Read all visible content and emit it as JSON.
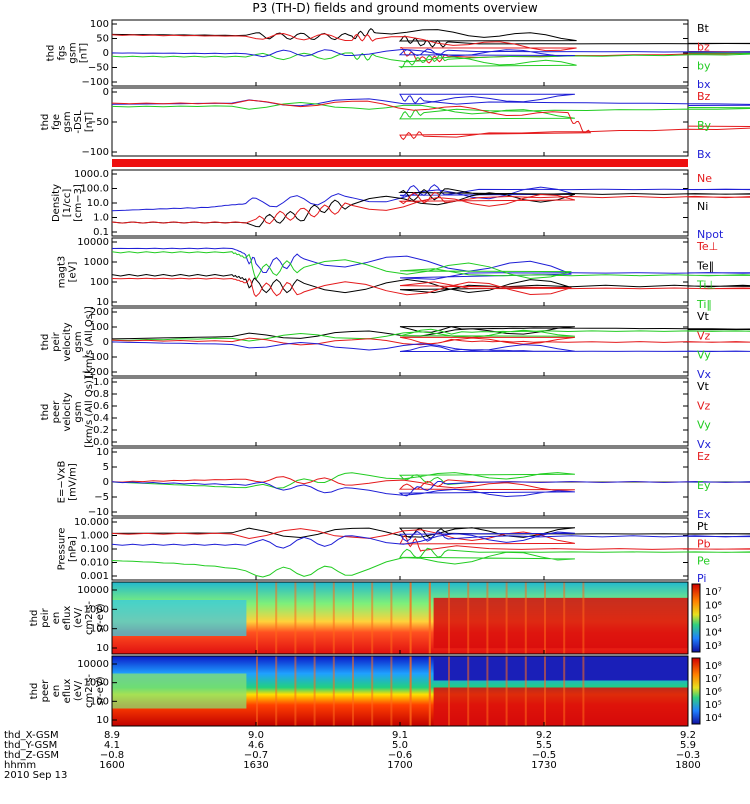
{
  "title": "P3 (TH-D) fields and ground moments overview",
  "colors": {
    "black": "#000000",
    "red": "#e41a1c",
    "green": "#22cc22",
    "blue": "#1f1fd6",
    "spectro_low": "#1d2bd6",
    "spectro_mid": "#22c9d0",
    "spectro_high": "#d91010"
  },
  "chart_data": [
    {
      "id": "fgs",
      "type": "line",
      "ylabel": [
        "thd",
        "fgs",
        "gsm",
        "[nT]"
      ],
      "ytick_labels": [
        "100",
        "50",
        "0",
        "−50",
        "−100"
      ],
      "ylim": [
        -100,
        100
      ],
      "legend": [
        {
          "label": "Bt",
          "color": "#000000"
        },
        {
          "label": "bz",
          "color": "#e41a1c"
        },
        {
          "label": "by",
          "color": "#22cc22"
        },
        {
          "label": "bx",
          "color": "#1f1fd6"
        }
      ],
      "series": [
        {
          "color": "#000000",
          "x": [
            1600,
            1630,
            1640,
            1650,
            1655,
            1700,
            1705,
            1710,
            1800
          ],
          "y": [
            62,
            58,
            55,
            55,
            75,
            50,
            32,
            30,
            32
          ]
        },
        {
          "color": "#e41a1c",
          "x": [
            1600,
            1630,
            1650,
            1655,
            1700,
            1705,
            1710,
            1800
          ],
          "y": [
            60,
            56,
            52,
            50,
            10,
            -25,
            -15,
            5
          ]
        },
        {
          "color": "#22cc22",
          "x": [
            1600,
            1630,
            1650,
            1655,
            1700,
            1705,
            1710,
            1800
          ],
          "y": [
            -12,
            -12,
            -10,
            -15,
            -40,
            -20,
            -15,
            0
          ]
        },
        {
          "color": "#1f1fd6",
          "x": [
            1600,
            1630,
            1650,
            1700,
            1710,
            1800
          ],
          "y": [
            0,
            -2,
            2,
            0,
            5,
            3
          ]
        }
      ]
    },
    {
      "id": "fge",
      "type": "line",
      "ylabel": [
        "thd",
        "fge",
        "gsm",
        "-DSL",
        "[nT]"
      ],
      "ytick_labels": [
        "0",
        "−50",
        "−100"
      ],
      "ylim": [
        -120,
        30
      ],
      "legend": [
        {
          "label": "Bz",
          "color": "#e41a1c"
        },
        {
          "label": "By",
          "color": "#22cc22"
        },
        {
          "label": "Bx",
          "color": "#1f1fd6"
        }
      ],
      "series": [
        {
          "color": "#1f1fd6",
          "x": [
            1600,
            1650,
            1700,
            1705,
            1800
          ],
          "y": [
            -2,
            3,
            15,
            5,
            -5
          ]
        },
        {
          "color": "#22cc22",
          "x": [
            1600,
            1650,
            1700,
            1705,
            1800
          ],
          "y": [
            -8,
            -5,
            -30,
            -20,
            -10
          ]
        },
        {
          "color": "#e41a1c",
          "x": [
            1600,
            1650,
            1695,
            1700,
            1705,
            1800
          ],
          "y": [
            0,
            0,
            -30,
            -80,
            -75,
            -55
          ]
        }
      ]
    },
    {
      "id": "density",
      "type": "line",
      "scale": "log",
      "ylabel": [
        "Density",
        "[1/cc]",
        "[cm−3]"
      ],
      "ytick_labels": [
        "1000.0",
        "100.0",
        "10.0",
        "1.0",
        "0.1"
      ],
      "ylim": [
        0.1,
        1000
      ],
      "legend": [
        {
          "label": "Ne",
          "color": "#e41a1c"
        },
        {
          "label": "Ni",
          "color": "#000000"
        },
        {
          "label": "Npot",
          "color": "#1f1fd6"
        }
      ],
      "series": [
        {
          "color": "#1f1fd6",
          "x": [
            1600,
            1620,
            1630,
            1650,
            1700,
            1710,
            1800
          ],
          "y": [
            3,
            5,
            10,
            20,
            60,
            80,
            80
          ]
        },
        {
          "color": "#000000",
          "x": [
            1600,
            1630,
            1640,
            1650,
            1700,
            1710,
            1800
          ],
          "y": [
            0.5,
            0.5,
            1.5,
            10,
            30,
            40,
            40
          ]
        },
        {
          "color": "#e41a1c",
          "x": [
            1600,
            1630,
            1640,
            1650,
            1700,
            1710,
            1800
          ],
          "y": [
            0.5,
            0.5,
            2,
            5,
            20,
            25,
            25
          ]
        }
      ]
    },
    {
      "id": "magt3",
      "type": "line",
      "scale": "log",
      "ylabel": [
        "magt3",
        "[eV]"
      ],
      "ytick_labels": [
        "10000",
        "1000",
        "100",
        "10"
      ],
      "ylim": [
        5,
        10000
      ],
      "legend": [
        {
          "label": "Te⊥",
          "color": "#e41a1c"
        },
        {
          "label": "Te‖",
          "color": "#000000"
        },
        {
          "label": "Ti⊥",
          "color": "#22cc22"
        },
        {
          "label": "Ti‖",
          "color": "#22cc22"
        }
      ],
      "series": [
        {
          "color": "#1f1fd6",
          "x": [
            1600,
            1625,
            1630,
            1640,
            1700,
            1800
          ],
          "y": [
            4000,
            4000,
            300,
            1000,
            200,
            200
          ]
        },
        {
          "color": "#22cc22",
          "x": [
            1600,
            1625,
            1630,
            1640,
            1700,
            1800
          ],
          "y": [
            2500,
            2500,
            200,
            500,
            150,
            150
          ]
        },
        {
          "color": "#000000",
          "x": [
            1600,
            1625,
            1630,
            1640,
            1700,
            1800
          ],
          "y": [
            150,
            150,
            40,
            40,
            40,
            40
          ]
        },
        {
          "color": "#e41a1c",
          "x": [
            1600,
            1625,
            1630,
            1640,
            1700,
            1800
          ],
          "y": [
            100,
            100,
            25,
            30,
            30,
            30
          ]
        }
      ]
    },
    {
      "id": "peir-velocity",
      "type": "line",
      "ylabel": [
        "thd",
        "peir",
        "velocity",
        "gsm",
        "[km/s (All Qs)]"
      ],
      "ytick_labels": [
        "200",
        "100",
        "0",
        "−100",
        "−200"
      ],
      "ylim": [
        -200,
        200
      ],
      "legend": [
        {
          "label": "Vt",
          "color": "#000000"
        },
        {
          "label": "Vz",
          "color": "#e41a1c"
        },
        {
          "label": "Vy",
          "color": "#22cc22"
        },
        {
          "label": "Vx",
          "color": "#1f1fd6"
        }
      ],
      "series": [
        {
          "color": "#000000",
          "x": [
            1600,
            1650,
            1700,
            1730,
            1800
          ],
          "y": [
            20,
            50,
            80,
            90,
            80
          ]
        },
        {
          "color": "#22cc22",
          "x": [
            1600,
            1650,
            1700,
            1730,
            1800
          ],
          "y": [
            10,
            40,
            60,
            70,
            70
          ]
        },
        {
          "color": "#e41a1c",
          "x": [
            1600,
            1650,
            1700,
            1730,
            1800
          ],
          "y": [
            10,
            0,
            10,
            0,
            0
          ]
        },
        {
          "color": "#1f1fd6",
          "x": [
            1600,
            1650,
            1700,
            1730,
            1800
          ],
          "y": [
            0,
            -30,
            -40,
            -60,
            -60
          ]
        }
      ]
    },
    {
      "id": "peer-velocity",
      "type": "line",
      "ylabel": [
        "thd",
        "peer",
        "velocity",
        "gsm",
        "[km/s (All Qs)]"
      ],
      "ytick_labels": [
        "1.0",
        "0.8",
        "0.6",
        "0.4",
        "0.2",
        "0.0"
      ],
      "ylim": [
        0,
        1
      ],
      "legend": [
        {
          "label": "Vt",
          "color": "#000000"
        },
        {
          "label": "Vz",
          "color": "#e41a1c"
        },
        {
          "label": "Vy",
          "color": "#22cc22"
        },
        {
          "label": "Vx",
          "color": "#1f1fd6"
        }
      ],
      "series": []
    },
    {
      "id": "e-field",
      "type": "line",
      "ylabel": [
        "E=−VxB",
        "[mV/m]"
      ],
      "ytick_labels": [
        "10",
        "5",
        "0",
        "−5",
        "−10"
      ],
      "ylim": [
        -10,
        10
      ],
      "legend": [
        {
          "label": "Ez",
          "color": "#e41a1c"
        },
        {
          "label": "Ey",
          "color": "#22cc22"
        },
        {
          "label": "Ex",
          "color": "#1f1fd6"
        }
      ],
      "series": [
        {
          "color": "#22cc22",
          "x": [
            1600,
            1630,
            1650,
            1700,
            1710,
            1800
          ],
          "y": [
            0,
            -2,
            2,
            2,
            0,
            0
          ]
        },
        {
          "color": "#e41a1c",
          "x": [
            1600,
            1630,
            1650,
            1700,
            1710,
            1800
          ],
          "y": [
            0,
            1,
            0,
            -2,
            0,
            0
          ]
        },
        {
          "color": "#1f1fd6",
          "x": [
            1600,
            1630,
            1650,
            1700,
            1710,
            1800
          ],
          "y": [
            0,
            -1,
            -3,
            -4,
            0,
            0
          ]
        }
      ]
    },
    {
      "id": "pressure",
      "type": "line",
      "scale": "log",
      "ylabel": [
        "Pressure",
        "[nPa]"
      ],
      "ytick_labels": [
        "10.000",
        "1.000",
        "0.100",
        "0.010",
        "0.001"
      ],
      "ylim": [
        0.001,
        10
      ],
      "legend": [
        {
          "label": "Pt",
          "color": "#000000"
        },
        {
          "label": "Pb",
          "color": "#e41a1c"
        },
        {
          "label": "Pe",
          "color": "#22cc22"
        },
        {
          "label": "Pi",
          "color": "#1f1fd6"
        }
      ],
      "series": [
        {
          "color": "#000000",
          "x": [
            1600,
            1650,
            1700,
            1710,
            1800
          ],
          "y": [
            1.3,
            1.5,
            1.5,
            1.2,
            1.2
          ]
        },
        {
          "color": "#e41a1c",
          "x": [
            1600,
            1650,
            1700,
            1705,
            1800
          ],
          "y": [
            1.2,
            1.3,
            0.5,
            0.1,
            0.1
          ]
        },
        {
          "color": "#1f1fd6",
          "x": [
            1600,
            1630,
            1650,
            1700,
            1710,
            1800
          ],
          "y": [
            0.2,
            0.2,
            0.4,
            0.8,
            0.8,
            0.8
          ]
        },
        {
          "color": "#22cc22",
          "x": [
            1600,
            1630,
            1650,
            1700,
            1710,
            1800
          ],
          "y": [
            0.015,
            0.002,
            0.003,
            0.04,
            0.06,
            0.06
          ]
        }
      ]
    },
    {
      "id": "peir-spectrogram",
      "type": "heatmap",
      "ylabel": [
        "thd",
        "peir",
        "en",
        "eflux",
        "(eV/",
        "cm2-s-",
        "sr-eV)"
      ],
      "ytick_labels": [
        "10000",
        "1000",
        "100",
        "10"
      ],
      "colorbar_labels": [
        "10⁷",
        "10⁶",
        "10⁵",
        "10⁴",
        "10³"
      ]
    },
    {
      "id": "peer-spectrogram",
      "type": "heatmap",
      "ylabel": [
        "thd",
        "peer",
        "en",
        "eflux",
        "(eV/",
        "cm2-s-",
        "sr-eV)"
      ],
      "ytick_labels": [
        "10000",
        "1000",
        "100",
        "10"
      ],
      "colorbar_labels": [
        "10⁸",
        "10⁷",
        "10⁶",
        "10⁵",
        "10⁴"
      ]
    }
  ],
  "x_axis": {
    "row_labels": [
      "thd_X-GSM",
      "thd_Y-GSM",
      "thd_Z-GSM",
      "hhmm"
    ],
    "date_label": "2010 Sep 13",
    "ticks": [
      {
        "values": [
          "8.9",
          "4.1",
          "−0.8",
          "1600"
        ]
      },
      {
        "values": [
          "9.0",
          "4.6",
          "−0.7",
          "1630"
        ]
      },
      {
        "values": [
          "9.1",
          "5.0",
          "−0.6",
          "1700"
        ]
      },
      {
        "values": [
          "9.2",
          "5.5",
          "−0.5",
          "1730"
        ]
      },
      {
        "values": [
          "9.2",
          "5.9",
          "−0.3",
          "1800"
        ]
      }
    ]
  }
}
